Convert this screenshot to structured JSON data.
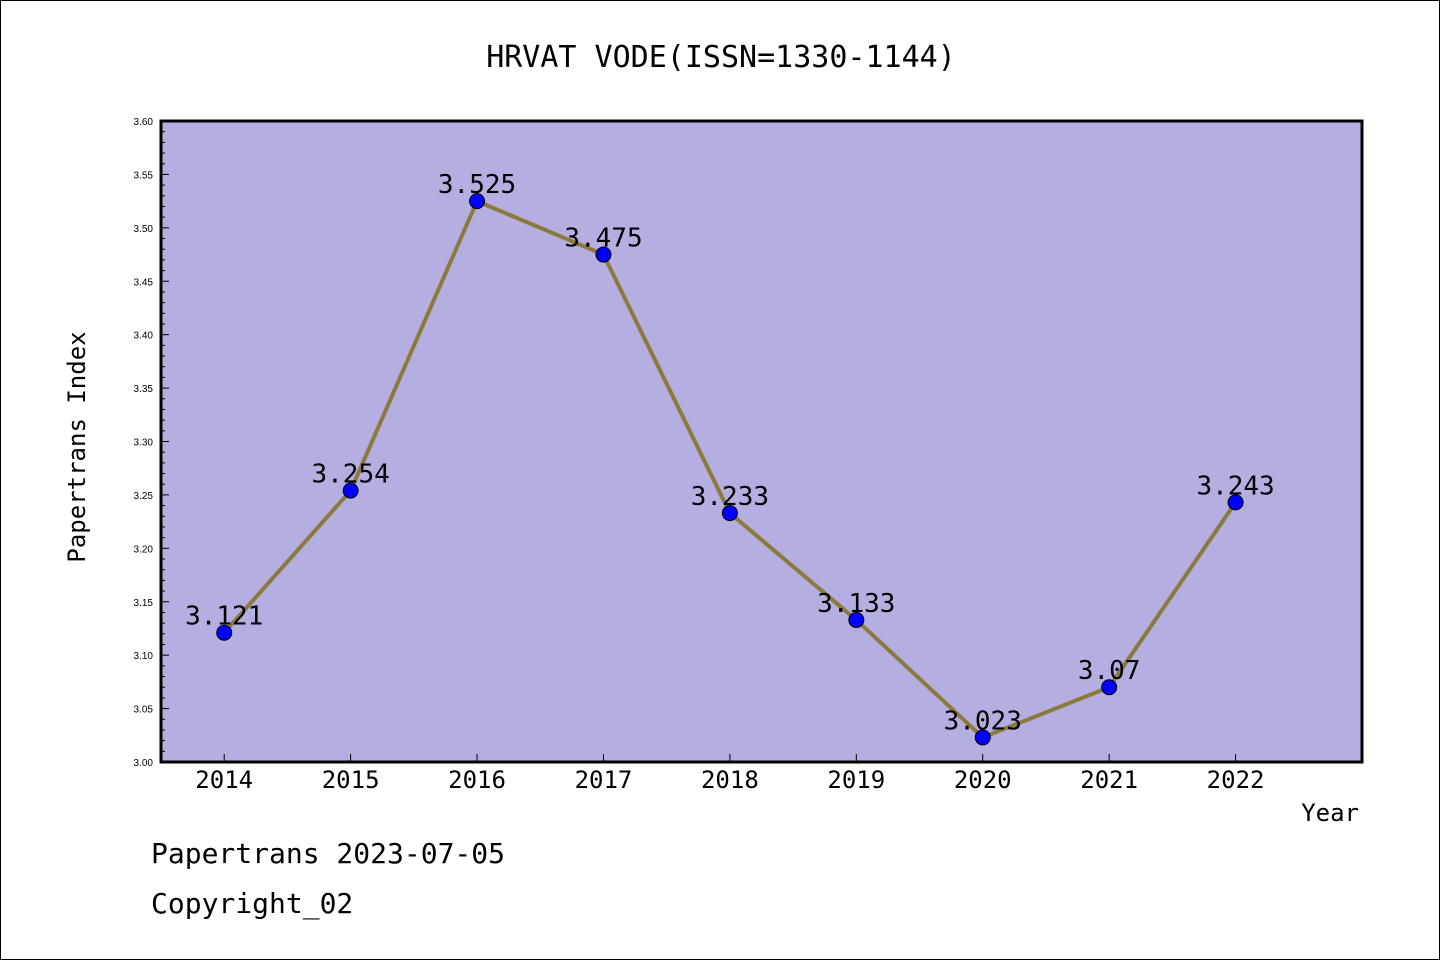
{
  "chart_data": {
    "type": "line",
    "title": "HRVAT VODE(ISSN=1330-1144)",
    "xlabel": "Year",
    "ylabel": "Papertrans Index",
    "categories": [
      "2014",
      "2015",
      "2016",
      "2017",
      "2018",
      "2019",
      "2020",
      "2021",
      "2022"
    ],
    "series": [
      {
        "values": [
          3.121,
          3.254,
          3.525,
          3.475,
          3.233,
          3.133,
          3.023,
          3.07,
          3.243
        ],
        "labels": [
          "3.121",
          "3.254",
          "3.525",
          "3.475",
          "3.233",
          "3.133",
          "3.023",
          "3.07",
          "3.243"
        ]
      }
    ],
    "ylim": [
      3.0,
      3.6
    ],
    "yticks": [
      "3.00",
      "3.05",
      "3.10",
      "3.15",
      "3.20",
      "3.25",
      "3.30",
      "3.35",
      "3.40",
      "3.45",
      "3.50",
      "3.55",
      "3.60"
    ],
    "grid": false,
    "colors": {
      "plot_background": "#b5aee1",
      "line": "#8b7a3c",
      "marker": "#0000ff"
    }
  },
  "footer": {
    "date_line": "Papertrans 2023-07-05",
    "copyright_line": "Copyright_02"
  }
}
